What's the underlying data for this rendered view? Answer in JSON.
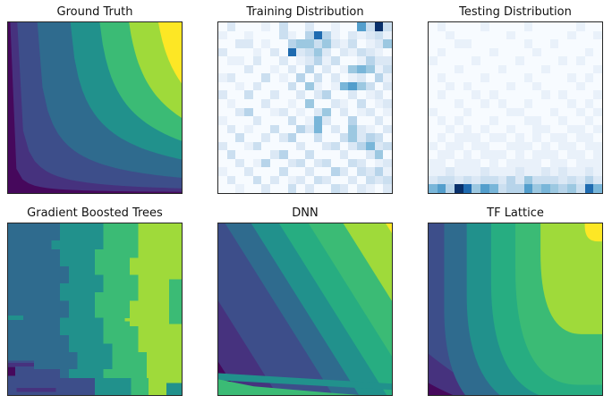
{
  "figure": {
    "background": "#ffffff",
    "title_color": "#111111",
    "spine_color": "#262626",
    "viridis_band_palette": [
      "#46085c",
      "#46327e",
      "#3d4e8a",
      "#2f6b8e",
      "#21918c",
      "#27ad81",
      "#3bbb75",
      "#9fda3a",
      "#fde725"
    ],
    "blues_palette": [
      "#f7fbff",
      "#e9f1fa",
      "#dbe8f5",
      "#cbdff0",
      "#b7d4ea",
      "#9cc8e1",
      "#79b6d9",
      "#539ecc",
      "#1f6bb0",
      "#08306b"
    ]
  },
  "chart_data": [
    {
      "type": "contour",
      "title": "Ground Truth",
      "colormap": "viridis",
      "surface_model": "monotonic in x and y; f ~ x*tanh(k*y), k=1.8; low (dark purple) at bottom-left, high (yellow) at top-right",
      "k": 1.8,
      "levels": [
        0.012,
        0.05,
        0.16,
        0.34,
        0.5,
        0.66,
        0.82
      ],
      "background": "#46085c",
      "band_colors": [
        "#46327e",
        "#3d4e8a",
        "#2f6b8e",
        "#21918c",
        "#3bbb75",
        "#9fda3a",
        "#fde725"
      ]
    },
    {
      "type": "heatmap",
      "title": "Training Distribution",
      "colormap": "Blues",
      "grid_size": [
        20,
        20
      ],
      "note": "sparse counts; darkest cells clustered in upper-middle and upper-right",
      "rows": [
        "02000103002001007393",
        "10010003104841021231",
        "00220100455352130125",
        "20001020823520213210",
        "01102002012413001422",
        "00020010204020156513",
        "12000301040302012041",
        "00102000305101675302",
        "20030020020240020120",
        "01000200105002103012",
        "00240012010250201201",
        "10002000301620040020",
        "02010030042602052102",
        "00300202400300352430",
        "20013000020023024623",
        "03000024003000200250",
        "00201400230230032012",
        "10020003002004203241",
        "02003020120320020323",
        "00100200302003202102"
      ]
    },
    {
      "type": "heatmap",
      "title": "Testing Distribution",
      "colormap": "Blues",
      "grid_size": [
        20,
        20
      ],
      "note": "very light everywhere except dense dark bottom row",
      "rows": [
        "01000010000100000100",
        "00100000010000001001",
        "00011000000100100000",
        "01000001000010000010",
        "10000100001000010100",
        "00010000100001000001",
        "01000010000100001010",
        "00101000010010000100",
        "01000101000001010001",
        "00010010100100001010",
        "10001000011000100101",
        "01010001000110010010",
        "00101010010011001101",
        "01011101101010110110",
        "10110110011101011011",
        "01101011101011101101",
        "11011101011110110111",
        "11211121112112121121",
        "23323233242533323242",
        "67498576344756545386"
      ]
    },
    {
      "type": "contour",
      "title": "Gradient Boosted Trees",
      "colormap": "viridis",
      "surface_model": "piecewise-constant blocky vertical bands, steel blue left to light green right, darker strip along bottom-left",
      "band_colors": [
        "#46085c",
        "#46327e",
        "#3d4e8a",
        "#2f6b8e",
        "#21918c",
        "#3bbb75",
        "#9fda3a"
      ]
    },
    {
      "type": "contour",
      "title": "DNN",
      "colormap": "viridis",
      "surface_model": "straight diagonal bands rising to top-right; thin non-monotonic artifact bands along bottom edge",
      "shift": 0.62,
      "thresholds": [
        -0.5,
        -0.28,
        0.04,
        0.19,
        0.35,
        0.52,
        0.72,
        0.965
      ],
      "background": "#46085c",
      "band_colors": [
        "#46327e",
        "#3d4e8a",
        "#2f6b8e",
        "#21918c",
        "#27ad81",
        "#3bbb75",
        "#9fda3a",
        "#fde725"
      ],
      "bottom_edge_artifact_colors": [
        "#21918c",
        "#3bbb75"
      ]
    },
    {
      "type": "contour",
      "title": "TF Lattice",
      "colormap": "viridis",
      "surface_model": "smooth rounded monotonic bands hugging top-right corner; tiny yellow patch at top-right, dark purple wedge at bottom-left",
      "background": "#3d4e8a",
      "corner_wedge_colors": [
        "#46327e",
        "#46085c"
      ],
      "bands": [
        {
          "a": 0.09,
          "v": 0.5,
          "q": 1.16,
          "e": 0.56,
          "color": "#2f6b8e"
        },
        {
          "a": 0.22,
          "v": 0.42,
          "q": 1.1,
          "e": 0.72,
          "color": "#21918c"
        },
        {
          "a": 0.36,
          "v": 0.34,
          "q": 1.03,
          "e": 0.8,
          "color": "#27ad81"
        },
        {
          "a": 0.5,
          "v": 0.26,
          "q": 0.94,
          "e": 0.86,
          "color": "#3bbb75"
        },
        {
          "a": 0.645,
          "v": 0.17,
          "q": 0.645,
          "e": 0.88,
          "color": "#9fda3a"
        },
        {
          "a": 0.9,
          "v": 0.015,
          "q": 0.105,
          "e": 0.975,
          "color": "#fde725"
        }
      ]
    }
  ]
}
